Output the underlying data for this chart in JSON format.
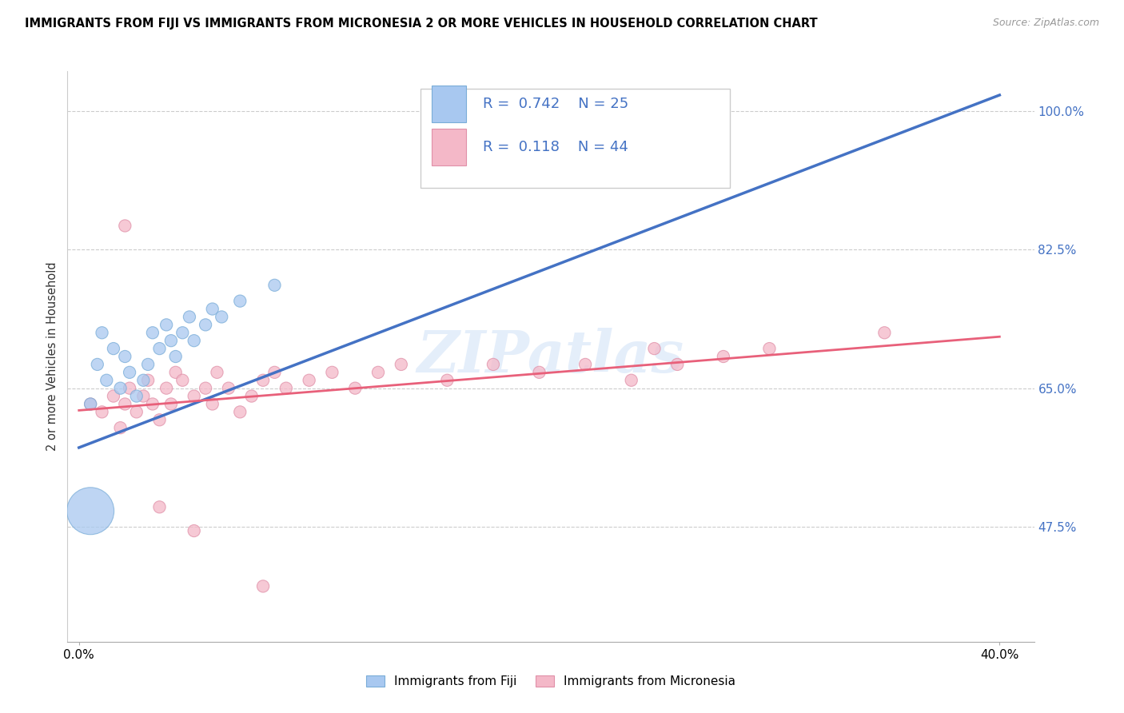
{
  "title": "IMMIGRANTS FROM FIJI VS IMMIGRANTS FROM MICRONESIA 2 OR MORE VEHICLES IN HOUSEHOLD CORRELATION CHART",
  "source": "Source: ZipAtlas.com",
  "ylabel": "2 or more Vehicles in Household",
  "fiji_R": 0.742,
  "fiji_N": 25,
  "micro_R": 0.118,
  "micro_N": 44,
  "fiji_color": "#a8c8f0",
  "fiji_edge_color": "#7aadd8",
  "micro_color": "#f4b8c8",
  "micro_edge_color": "#e090a8",
  "fiji_line_color": "#4472c4",
  "micro_line_color": "#e8607a",
  "legend_label_fiji": "Immigrants from Fiji",
  "legend_label_micro": "Immigrants from Micronesia",
  "watermark": "ZIPatlas",
  "right_yticks": [
    0.475,
    0.65,
    0.825,
    1.0
  ],
  "right_ytick_labels": [
    "47.5%",
    "65.0%",
    "82.5%",
    "100.0%"
  ],
  "fiji_line_x0": 0.0,
  "fiji_line_x1": 0.4,
  "fiji_line_y0": 0.575,
  "fiji_line_y1": 1.02,
  "micro_line_x0": 0.0,
  "micro_line_x1": 0.4,
  "micro_line_y0": 0.622,
  "micro_line_y1": 0.715,
  "xlim_min": -0.005,
  "xlim_max": 0.415,
  "ylim_min": 0.33,
  "ylim_max": 1.05,
  "fiji_x": [
    0.005,
    0.008,
    0.01,
    0.012,
    0.015,
    0.018,
    0.02,
    0.022,
    0.025,
    0.028,
    0.03,
    0.032,
    0.035,
    0.038,
    0.04,
    0.042,
    0.045,
    0.048,
    0.05,
    0.055,
    0.058,
    0.062,
    0.07,
    0.085,
    0.005
  ],
  "fiji_y": [
    0.63,
    0.68,
    0.72,
    0.66,
    0.7,
    0.65,
    0.69,
    0.67,
    0.64,
    0.66,
    0.68,
    0.72,
    0.7,
    0.73,
    0.71,
    0.69,
    0.72,
    0.74,
    0.71,
    0.73,
    0.75,
    0.74,
    0.76,
    0.78,
    0.495
  ],
  "fiji_sizes": [
    120,
    120,
    120,
    120,
    120,
    120,
    120,
    120,
    120,
    120,
    120,
    120,
    120,
    120,
    120,
    120,
    120,
    120,
    120,
    120,
    120,
    120,
    120,
    120,
    1800
  ],
  "micro_x": [
    0.005,
    0.01,
    0.015,
    0.018,
    0.02,
    0.022,
    0.025,
    0.028,
    0.03,
    0.032,
    0.035,
    0.038,
    0.04,
    0.042,
    0.045,
    0.05,
    0.055,
    0.058,
    0.06,
    0.065,
    0.07,
    0.075,
    0.08,
    0.085,
    0.09,
    0.1,
    0.11,
    0.12,
    0.13,
    0.14,
    0.16,
    0.18,
    0.2,
    0.22,
    0.24,
    0.25,
    0.26,
    0.28,
    0.3,
    0.35,
    0.02,
    0.035,
    0.05,
    0.08
  ],
  "micro_y": [
    0.63,
    0.62,
    0.64,
    0.6,
    0.63,
    0.65,
    0.62,
    0.64,
    0.66,
    0.63,
    0.61,
    0.65,
    0.63,
    0.67,
    0.66,
    0.64,
    0.65,
    0.63,
    0.67,
    0.65,
    0.62,
    0.64,
    0.66,
    0.67,
    0.65,
    0.66,
    0.67,
    0.65,
    0.67,
    0.68,
    0.66,
    0.68,
    0.67,
    0.68,
    0.66,
    0.7,
    0.68,
    0.69,
    0.7,
    0.72,
    0.855,
    0.5,
    0.47,
    0.4
  ],
  "micro_sizes": [
    120,
    120,
    120,
    120,
    120,
    120,
    120,
    120,
    120,
    120,
    120,
    120,
    120,
    120,
    120,
    120,
    120,
    120,
    120,
    120,
    120,
    120,
    120,
    120,
    120,
    120,
    120,
    120,
    120,
    120,
    120,
    120,
    120,
    120,
    120,
    120,
    120,
    120,
    120,
    120,
    120,
    120,
    120,
    120
  ]
}
